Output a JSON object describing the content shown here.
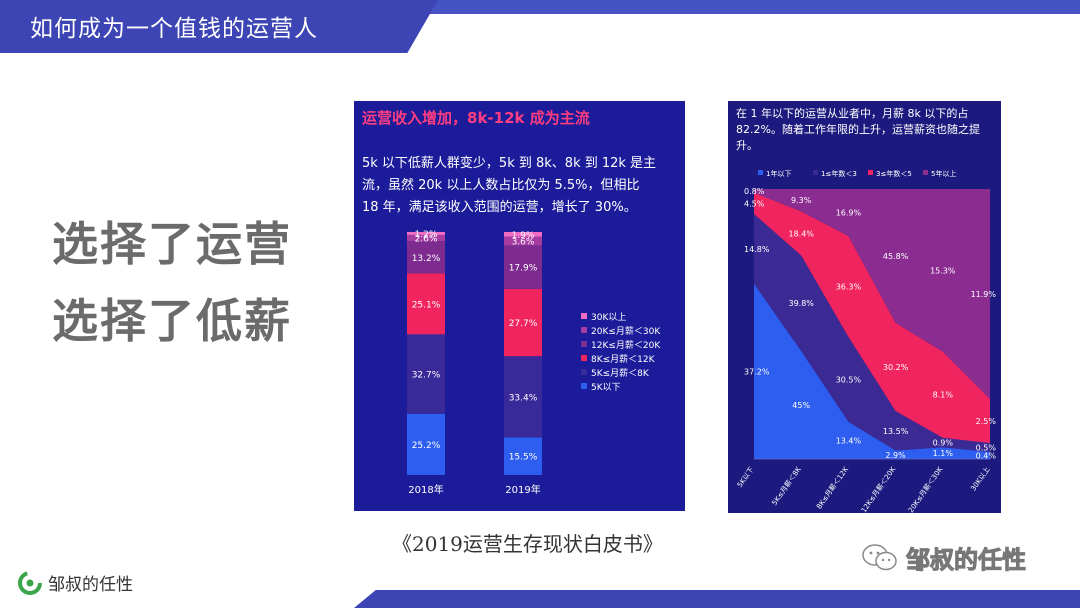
{
  "slide": {
    "title": "如何成为一个值钱的运营人",
    "headline1": "选择了运营",
    "headline2": "选择了低薪",
    "caption": "《2019运营生存现状白皮书》",
    "logo_text": "邹叔的任性",
    "watermark_text": "邹叔的任性"
  },
  "colors": {
    "brand": "#3d45b4",
    "panel_bg_left": "#1c1c9a",
    "panel_bg_right": "#1c1a7e",
    "headline": "#6b6b6b"
  },
  "left_panel": {
    "heading": "运营收入增加，8k-12k 成为主流",
    "body_lines": [
      "5k 以下低薪人群变少，5k 到 8k、8k 到 12k 是主",
      "流，虽然 20k 以上人数占比仅为 5.5%，但相比",
      "18 年，满足该收入范围的运营，增长了 30%。"
    ]
  },
  "right_panel": {
    "body_lines": [
      "在 1 年以下的运营从业者中，月薪 8k 以下的占",
      "82.2%。随着工作年限的上升，运营薪资也随之提",
      "升。"
    ]
  },
  "chart_data": [
    {
      "type": "bar",
      "stacked": true,
      "categories": [
        "2018年",
        "2019年"
      ],
      "series": [
        {
          "name": "5K以下",
          "color": "#2d5ef0",
          "values": [
            25.2,
            15.5
          ]
        },
        {
          "name": "5K≤月薪＜8K",
          "color": "#3a2a99",
          "values": [
            32.7,
            33.4
          ]
        },
        {
          "name": "8K≤月薪＜12K",
          "color": "#f0245e",
          "values": [
            25.1,
            27.7
          ]
        },
        {
          "name": "12K≤月薪＜20K",
          "color": "#7d2b8e",
          "values": [
            13.2,
            17.9
          ]
        },
        {
          "name": "20K≤月薪＜30K",
          "color": "#a63ba2",
          "values": [
            2.6,
            3.6
          ]
        },
        {
          "name": "30K以上",
          "color": "#f26cc4",
          "values": [
            1.2,
            1.9
          ]
        }
      ],
      "legend_position": "right",
      "ylim": [
        0,
        100
      ]
    },
    {
      "type": "area",
      "stacked": true,
      "normalized": true,
      "categories": [
        "5K以下",
        "5K≤月薪＜8K",
        "8K≤月薪＜12K",
        "12K≤月薪＜20K",
        "20K≤月薪＜30K",
        "30K以上"
      ],
      "series": [
        {
          "name": "1年以下",
          "color": "#2d5ef0",
          "values": [
            37.2,
            45.0,
            13.4,
            2.9,
            1.1,
            0.4
          ]
        },
        {
          "name": "1≤年数＜3",
          "color": "#3c2a94",
          "values": [
            14.8,
            39.8,
            30.5,
            13.5,
            0.9,
            0.5
          ]
        },
        {
          "name": "3≤年数＜5",
          "color": "#f0245e",
          "values": [
            4.5,
            18.4,
            36.3,
            30.2,
            8.1,
            2.5
          ]
        },
        {
          "name": "5年以上",
          "color": "#8a2c90",
          "values": [
            0.8,
            9.3,
            16.9,
            45.8,
            15.3,
            11.9
          ]
        }
      ],
      "legend_position": "top",
      "ylim": [
        0,
        100
      ]
    }
  ]
}
